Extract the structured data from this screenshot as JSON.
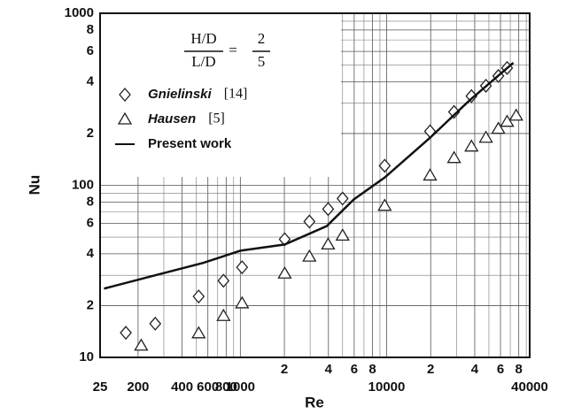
{
  "chart_data": {
    "type": "scatter",
    "x_label": "Re",
    "y_label": "Nu",
    "log_x": true,
    "log_y": true,
    "grid": true,
    "xlim": [
      110,
      95000
    ],
    "ylim": [
      10,
      1000
    ],
    "xticks": [
      {
        "value": 110,
        "label": "25"
      },
      200,
      400,
      600,
      800,
      1000,
      {
        "value": 2000,
        "label": "2"
      },
      {
        "value": 4000,
        "label": "4"
      },
      {
        "value": 6000,
        "label": "6"
      },
      {
        "value": 8000,
        "label": "8"
      },
      10000,
      {
        "value": 20000,
        "label": "2"
      },
      {
        "value": 40000,
        "label": "4"
      },
      {
        "value": 60000,
        "label": "6"
      },
      {
        "value": 80000,
        "label": "8"
      },
      {
        "value": 95000,
        "label": "40000"
      }
    ],
    "yticks": [
      10,
      {
        "value": 20,
        "label": "2"
      },
      {
        "value": 40,
        "label": "4"
      },
      {
        "value": 60,
        "label": "6"
      },
      {
        "value": 80,
        "label": "8"
      },
      100,
      {
        "value": 200,
        "label": "2"
      },
      {
        "value": 400,
        "label": "4"
      },
      {
        "value": 600,
        "label": "6"
      },
      {
        "value": 800,
        "label": "8"
      },
      1000
    ],
    "xticks_minor": [
      300,
      500,
      700,
      900,
      3000,
      5000,
      7000,
      9000,
      30000,
      50000,
      70000,
      90000
    ],
    "yticks_minor": [
      30,
      50,
      70,
      90,
      300,
      500,
      700,
      900
    ],
    "legend_equation": {
      "num_left": "H/D",
      "den_left": "L/D",
      "num_right": "2",
      "den_right": "5"
    },
    "series": [
      {
        "name": "Gnielinski",
        "ref": "[14]",
        "marker": "diamond",
        "color": "#222222",
        "x": [
          165,
          262,
          519,
          767,
          1028,
          2010,
          2965,
          3980,
          5000,
          9700,
          19800,
          28900,
          38000,
          47700,
          58000,
          66600
        ],
        "values": [
          13.9,
          15.7,
          22.6,
          27.9,
          33.4,
          48.6,
          61.6,
          72.8,
          83.8,
          130,
          206,
          267,
          330,
          379,
          432,
          481
        ]
      },
      {
        "name": "Hausen",
        "ref": "[5]",
        "marker": "triangle",
        "color": "#222222",
        "x": [
          210,
          519,
          767,
          1028,
          2010,
          2965,
          3980,
          5000,
          9700,
          19800,
          28900,
          38000,
          47700,
          58000,
          66600,
          76800
        ],
        "values": [
          11.7,
          13.8,
          17.4,
          20.6,
          30.7,
          38.5,
          45.3,
          51,
          76,
          114,
          144,
          168,
          189,
          213,
          234,
          254
        ]
      },
      {
        "name": "Present work",
        "marker": "line",
        "color": "#111111",
        "x": [
          117,
          262,
          557,
          1000,
          2010,
          3900,
          5960,
          9700,
          19800,
          36600,
          73500
        ],
        "values": [
          25.1,
          30,
          35.4,
          41.7,
          45.3,
          58,
          82.8,
          111,
          189,
          310,
          516
        ]
      }
    ]
  }
}
